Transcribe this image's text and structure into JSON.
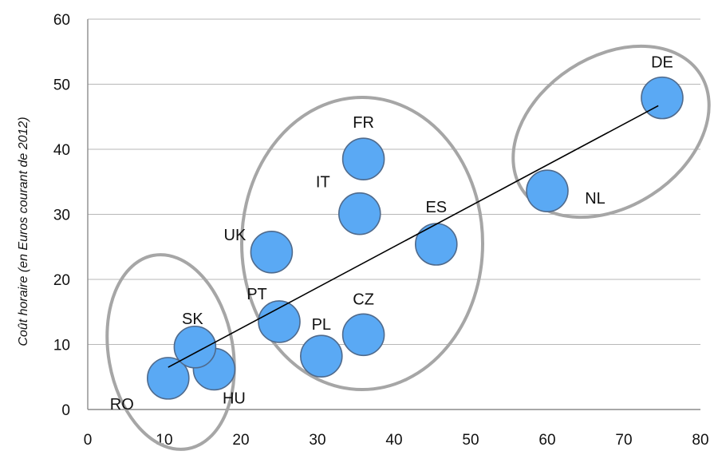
{
  "chart_data": {
    "type": "scatter",
    "ylabel": "Coût horaire (en Euros courant de 2012)",
    "xlabel": "",
    "xlim": [
      0,
      80
    ],
    "ylim": [
      0,
      60
    ],
    "xticks": [
      "0",
      "10",
      "20",
      "30",
      "40",
      "50",
      "60",
      "70",
      "80"
    ],
    "yticks": [
      "0",
      "10",
      "20",
      "30",
      "40",
      "50",
      "60"
    ],
    "grid": "horizontal",
    "points": [
      {
        "label": "RO",
        "x": 10.5,
        "y": 4.8
      },
      {
        "label": "HU",
        "x": 16.5,
        "y": 6.2
      },
      {
        "label": "SK",
        "x": 14,
        "y": 9.6
      },
      {
        "label": "PT",
        "x": 25,
        "y": 13.5
      },
      {
        "label": "PL",
        "x": 30.5,
        "y": 8.2
      },
      {
        "label": "CZ",
        "x": 36,
        "y": 11.5
      },
      {
        "label": "UK",
        "x": 24,
        "y": 24.2
      },
      {
        "label": "IT",
        "x": 35.5,
        "y": 30.1
      },
      {
        "label": "FR",
        "x": 36,
        "y": 38.5
      },
      {
        "label": "ES",
        "x": 45.5,
        "y": 25.4
      },
      {
        "label": "NL",
        "x": 60,
        "y": 33.6
      },
      {
        "label": "DE",
        "x": 75,
        "y": 47.9
      }
    ],
    "trendline": {
      "x_start": 10.5,
      "y_start": 6.5,
      "x_end": 74.5,
      "y_end": 46.7
    },
    "marker_color": "#5aa9f4",
    "marker_stroke": "#4f6a8c",
    "cluster_color": "#a6a6a6"
  }
}
